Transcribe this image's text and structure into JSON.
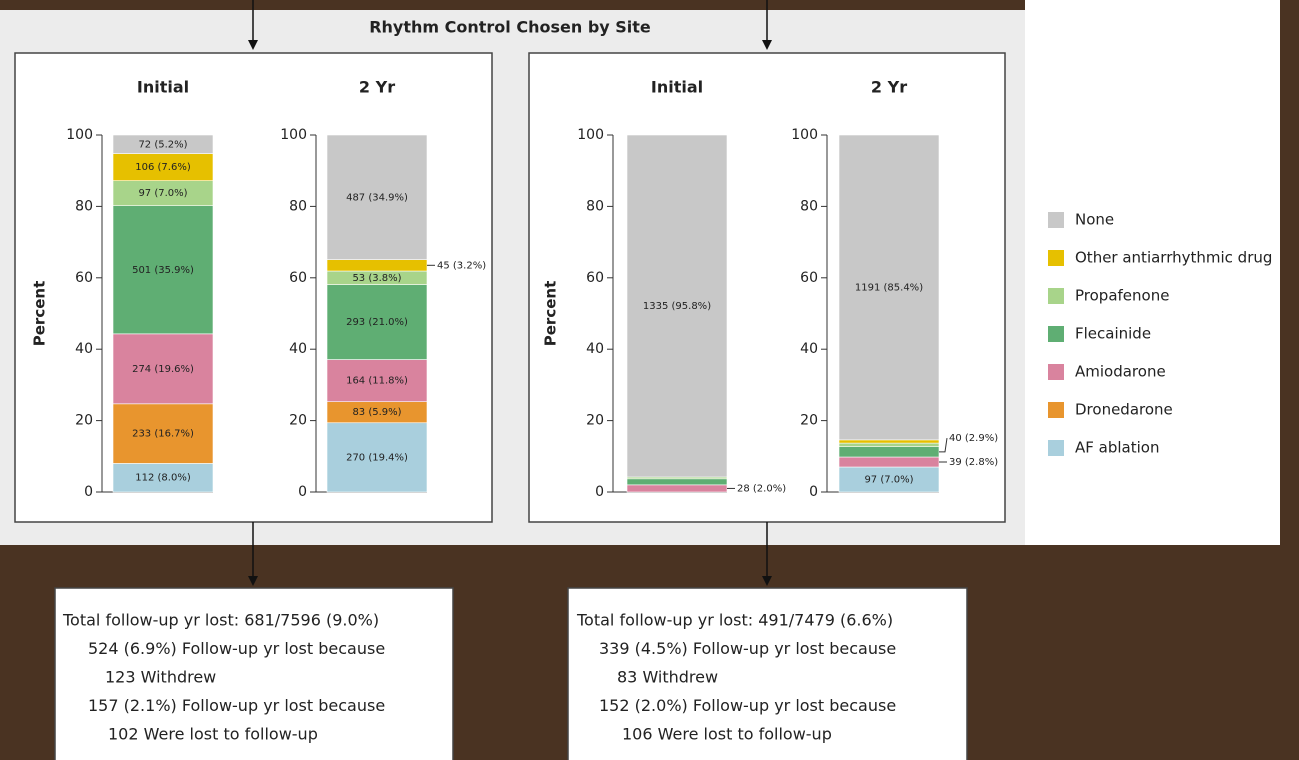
{
  "chart_data": {
    "type": "bar",
    "stacked": true,
    "title": "Rhythm Control Chosen by Site",
    "y_label": "Percent",
    "categories": [
      "Initial",
      "2 Yr",
      "Initial",
      "2 Yr"
    ],
    "ylim": [
      0,
      100
    ],
    "yticks": [
      0,
      20,
      40,
      60,
      80,
      100
    ],
    "series": [
      {
        "name": "AF ablation",
        "color": "#a9cfdd",
        "values": [
          8.0,
          19.4,
          0,
          7.0
        ],
        "value_labels": [
          "112 (8.0%)",
          "270 (19.4%)",
          null,
          "97 (7.0%)"
        ]
      },
      {
        "name": "Dronedarone",
        "color": "#e8952e",
        "values": [
          16.7,
          5.9,
          0,
          0
        ],
        "value_labels": [
          "233 (16.7%)",
          "83 (5.9%)",
          null,
          null
        ]
      },
      {
        "name": "Amiodarone",
        "color": "#d9839e",
        "values": [
          19.6,
          11.8,
          2.0,
          2.8
        ],
        "value_labels": [
          "274 (19.6%)",
          "164 (11.8%)",
          "28 (2.0%)",
          "39 (2.8%)"
        ]
      },
      {
        "name": "Flecainide",
        "color": "#5fae73",
        "values": [
          35.9,
          21.0,
          1.7,
          2.9
        ],
        "value_labels": [
          "501 (35.9%)",
          "293 (21.0%)",
          null,
          "40 (2.9%)"
        ]
      },
      {
        "name": "Propafenone",
        "color": "#a8d48a",
        "values": [
          7.0,
          3.8,
          0.5,
          1.0
        ],
        "value_labels": [
          "97 (7.0%)",
          "53 (3.8%)",
          null,
          null
        ]
      },
      {
        "name": "Other antiarrhythmic drug",
        "color": "#e6c000",
        "values": [
          7.6,
          3.2,
          0,
          0.9
        ],
        "value_labels": [
          "106 (7.6%)",
          "45 (3.2%)",
          null,
          null
        ]
      },
      {
        "name": "None",
        "color": "#c8c8c8",
        "values": [
          5.2,
          34.9,
          95.8,
          85.4
        ],
        "value_labels": [
          "72 (5.2%)",
          "487 (34.9%)",
          "1335 (95.8%)",
          "1191 (85.4%)"
        ]
      }
    ]
  },
  "follow_up_boxes": [
    {
      "lines": [
        "Total follow-up yr lost: 681/7596 (9.0%)",
        "524 (6.9%) Follow-up yr lost because",
        "123 Withdrew",
        "157 (2.1%) Follow-up yr lost because",
        "102 Were lost to follow-up"
      ]
    },
    {
      "lines": [
        "Total follow-up yr lost: 491/7479 (6.6%)",
        "339 (4.5%) Follow-up yr lost because",
        "83 Withdrew",
        "152 (2.0%) Follow-up yr lost because",
        "106 Were lost to follow-up"
      ]
    }
  ]
}
